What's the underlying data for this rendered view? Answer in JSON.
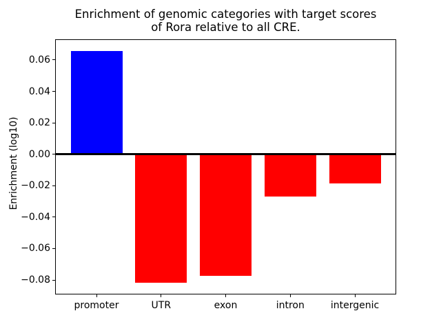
{
  "figure": {
    "kind": "matplotlib-bar-chart"
  },
  "chart_data": {
    "type": "bar",
    "title": "Enrichment of genomic categories with target scores\nof Rora relative to all CRE.",
    "categories": [
      "promoter",
      "UTR",
      "exon",
      "intron",
      "intergenic"
    ],
    "values": [
      0.0657,
      -0.0818,
      -0.0772,
      -0.0268,
      -0.0187
    ],
    "bar_colors": [
      "#0000ff",
      "#ff0000",
      "#ff0000",
      "#ff0000",
      "#ff0000"
    ],
    "xlabel": "",
    "ylabel": "Enrichment (log10)",
    "ylim": [
      -0.0892,
      0.0731
    ],
    "yticks": [
      0.06,
      0.04,
      0.02,
      0.0,
      -0.02,
      -0.04,
      -0.06,
      -0.08
    ],
    "ytick_labels": [
      "0.06",
      "0.04",
      "0.02",
      "0.00",
      "−0.02",
      "−0.04",
      "−0.06",
      "−0.08"
    ],
    "zero_line": true,
    "zero_line_color": "#000000",
    "grid": false,
    "legend": false,
    "positive_color": "#0000ff",
    "negative_color": "#ff0000",
    "background_color": "#ffffff",
    "axis_color": "#000000"
  }
}
